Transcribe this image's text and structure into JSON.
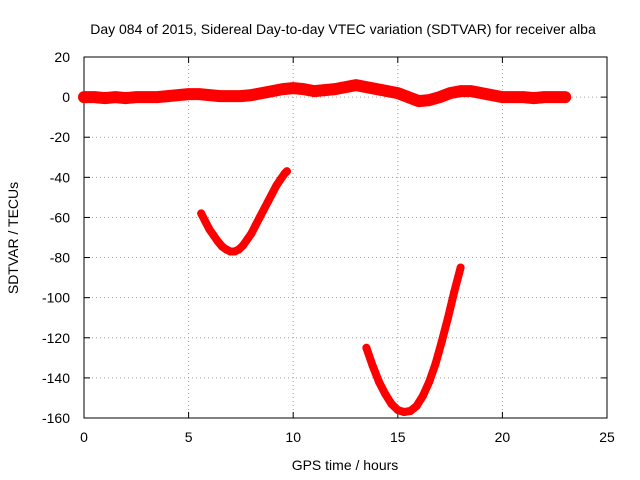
{
  "chart_data": {
    "type": "line",
    "title": "Day 084 of 2015, Sidereal Day-to-day VTEC variation (SDTVAR) for receiver alba",
    "xlabel": "GPS time / hours",
    "ylabel": "SDTVAR / TECUs",
    "xlim": [
      0,
      25
    ],
    "ylim": [
      -160,
      20
    ],
    "xticks": [
      0,
      5,
      10,
      15,
      20,
      25
    ],
    "yticks": [
      20,
      0,
      -20,
      -40,
      -60,
      -80,
      -100,
      -120,
      -140,
      -160
    ],
    "grid": true,
    "legend": "none",
    "series": [
      {
        "name": "main",
        "color": "#ff0000",
        "x": [
          0,
          0.5,
          1,
          1.5,
          2,
          2.5,
          3,
          3.5,
          4,
          4.5,
          5,
          5.5,
          6,
          6.5,
          7,
          7.5,
          8,
          8.5,
          9,
          9.5,
          10,
          10.5,
          11,
          11.5,
          12,
          12.5,
          13,
          13.5,
          14,
          14.5,
          15,
          15.5,
          16,
          16.5,
          17,
          17.5,
          18,
          18.5,
          19,
          19.5,
          20,
          20.5,
          21,
          21.5,
          22,
          22.5,
          23
        ],
        "y": [
          0,
          0,
          -0.5,
          0,
          -0.5,
          0,
          0,
          0,
          0.5,
          1,
          1.5,
          1.5,
          1,
          0.5,
          0.5,
          0.5,
          1,
          2,
          3,
          4,
          4.5,
          4,
          3,
          3.5,
          4,
          5,
          6,
          5,
          4,
          3,
          2,
          0,
          -2,
          -1.5,
          0,
          2,
          3,
          3,
          2,
          1,
          0,
          0,
          0,
          -0.5,
          0,
          0,
          0
        ]
      },
      {
        "name": "arc-1",
        "color": "#ff0000",
        "x": [
          5.6,
          5.8,
          6,
          6.2,
          6.4,
          6.6,
          6.8,
          7,
          7.2,
          7.4,
          7.6,
          7.8,
          8,
          8.2,
          8.4,
          8.6,
          8.8,
          9,
          9.2,
          9.4,
          9.6,
          9.7
        ],
        "y": [
          -58,
          -62,
          -66,
          -69,
          -72,
          -74.5,
          -76,
          -77,
          -77,
          -76,
          -74,
          -71,
          -68,
          -64,
          -60,
          -56,
          -52,
          -48,
          -44,
          -41,
          -38,
          -37
        ]
      },
      {
        "name": "arc-2",
        "color": "#ff0000",
        "x": [
          13.5,
          13.8,
          14.1,
          14.4,
          14.7,
          15,
          15.3,
          15.6,
          15.9,
          16.2,
          16.5,
          16.8,
          17.1,
          17.4,
          17.7,
          18
        ],
        "y": [
          -125,
          -134,
          -142,
          -148,
          -153,
          -156,
          -157,
          -156.5,
          -154,
          -149,
          -142,
          -133,
          -122,
          -110,
          -97,
          -85
        ]
      }
    ]
  }
}
